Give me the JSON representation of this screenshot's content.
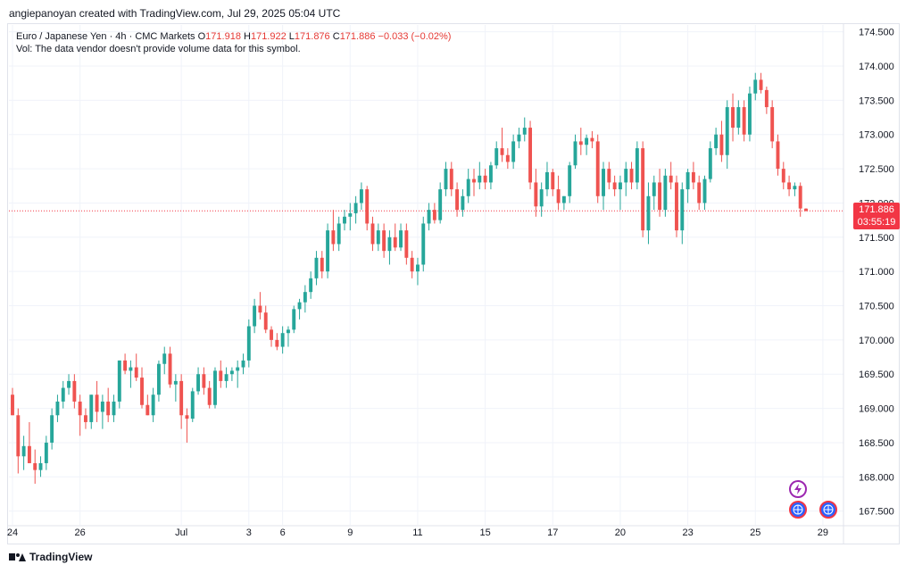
{
  "header": {
    "attribution": "angiepanoyan created with TradingView.com, Jul 29, 2025 05:04 UTC"
  },
  "legend": {
    "symbol": "Euro / Japanese Yen · 4h · CMC Markets",
    "open_label": "O",
    "open": "171.918",
    "high_label": "H",
    "high": "171.922",
    "low_label": "L",
    "low": "171.876",
    "close_label": "C",
    "close": "171.886",
    "change": "−0.033 (−0.02%)",
    "volume_note": "Vol: The data vendor doesn't provide volume data for this symbol."
  },
  "price_tag": {
    "price": "171.886",
    "countdown": "03:55:19"
  },
  "footer": {
    "brand": "TradingView"
  },
  "colors": {
    "up": "#26a69a",
    "down": "#ef5350",
    "price_line": "#f23645",
    "grid": "#f0f3fa"
  },
  "icons": [
    "lightning-icon",
    "globe-icon",
    "globe-icon"
  ],
  "chart_data": {
    "type": "candlestick",
    "title": "Euro / Japanese Yen · 4h · CMC Markets",
    "ylim": [
      167.3,
      174.6
    ],
    "y_ticks": [
      "174.500",
      "174.000",
      "173.500",
      "173.000",
      "172.500",
      "172.000",
      "171.500",
      "171.000",
      "170.500",
      "170.000",
      "169.500",
      "169.000",
      "168.500",
      "168.000",
      "167.500"
    ],
    "x_ticks": [
      {
        "label": "24",
        "index": 0
      },
      {
        "label": "26",
        "index": 12
      },
      {
        "label": "Jul",
        "index": 30
      },
      {
        "label": "3",
        "index": 42
      },
      {
        "label": "6",
        "index": 48
      },
      {
        "label": "9",
        "index": 60
      },
      {
        "label": "11",
        "index": 72
      },
      {
        "label": "15",
        "index": 84
      },
      {
        "label": "17",
        "index": 96
      },
      {
        "label": "20",
        "index": 108
      },
      {
        "label": "23",
        "index": 120
      },
      {
        "label": "25",
        "index": 132
      },
      {
        "label": "29",
        "index": 144
      }
    ],
    "last_price": 171.886,
    "candles": [
      [
        169.2,
        169.3,
        168.9,
        168.9
      ],
      [
        168.9,
        169.0,
        168.05,
        168.3
      ],
      [
        168.3,
        168.6,
        168.1,
        168.45
      ],
      [
        168.45,
        168.8,
        168.2,
        168.2
      ],
      [
        168.2,
        168.4,
        167.9,
        168.1
      ],
      [
        168.1,
        168.3,
        168.0,
        168.2
      ],
      [
        168.2,
        168.6,
        168.1,
        168.5
      ],
      [
        168.5,
        169.0,
        168.4,
        168.9
      ],
      [
        168.9,
        169.2,
        168.8,
        169.1
      ],
      [
        169.1,
        169.4,
        169.0,
        169.3
      ],
      [
        169.3,
        169.5,
        169.2,
        169.4
      ],
      [
        169.4,
        169.5,
        169.0,
        169.1
      ],
      [
        169.1,
        169.2,
        168.6,
        168.9
      ],
      [
        168.9,
        169.0,
        168.7,
        168.8
      ],
      [
        168.8,
        169.2,
        168.7,
        169.2
      ],
      [
        169.2,
        169.4,
        168.8,
        168.95
      ],
      [
        168.95,
        169.2,
        168.7,
        169.1
      ],
      [
        169.1,
        169.3,
        168.8,
        168.9
      ],
      [
        168.9,
        169.2,
        168.8,
        169.1
      ],
      [
        169.1,
        169.7,
        169.0,
        169.7
      ],
      [
        169.7,
        169.8,
        169.5,
        169.55
      ],
      [
        169.55,
        169.7,
        169.3,
        169.6
      ],
      [
        169.6,
        169.8,
        169.4,
        169.45
      ],
      [
        169.45,
        169.6,
        169.0,
        169.05
      ],
      [
        169.05,
        169.2,
        168.9,
        168.9
      ],
      [
        168.9,
        169.3,
        168.8,
        169.2
      ],
      [
        169.2,
        169.7,
        169.1,
        169.65
      ],
      [
        169.65,
        169.9,
        169.5,
        169.8
      ],
      [
        169.8,
        169.9,
        169.3,
        169.35
      ],
      [
        169.35,
        169.5,
        169.1,
        169.4
      ],
      [
        169.4,
        169.5,
        168.7,
        168.9
      ],
      [
        168.9,
        169.0,
        168.5,
        168.85
      ],
      [
        168.85,
        169.3,
        168.8,
        169.25
      ],
      [
        169.25,
        169.6,
        169.2,
        169.5
      ],
      [
        169.5,
        169.6,
        169.2,
        169.3
      ],
      [
        169.3,
        169.4,
        169.0,
        169.05
      ],
      [
        169.05,
        169.6,
        169.0,
        169.55
      ],
      [
        169.55,
        169.7,
        169.3,
        169.4
      ],
      [
        169.4,
        169.6,
        169.3,
        169.5
      ],
      [
        169.5,
        169.6,
        169.4,
        169.55
      ],
      [
        169.55,
        169.7,
        169.3,
        169.6
      ],
      [
        169.6,
        169.8,
        169.5,
        169.7
      ],
      [
        169.7,
        170.3,
        169.6,
        170.2
      ],
      [
        170.2,
        170.6,
        170.1,
        170.5
      ],
      [
        170.5,
        170.7,
        170.3,
        170.4
      ],
      [
        170.4,
        170.5,
        170.1,
        170.15
      ],
      [
        170.15,
        170.2,
        169.9,
        170.0
      ],
      [
        170.0,
        170.1,
        169.85,
        169.9
      ],
      [
        169.9,
        170.2,
        169.8,
        170.1
      ],
      [
        170.1,
        170.2,
        169.9,
        170.15
      ],
      [
        170.15,
        170.5,
        170.1,
        170.45
      ],
      [
        170.45,
        170.6,
        170.3,
        170.55
      ],
      [
        170.55,
        170.8,
        170.4,
        170.7
      ],
      [
        170.7,
        171.0,
        170.6,
        170.9
      ],
      [
        170.9,
        171.3,
        170.8,
        171.2
      ],
      [
        171.2,
        171.3,
        170.9,
        171.0
      ],
      [
        171.0,
        171.7,
        170.9,
        171.6
      ],
      [
        171.6,
        171.9,
        171.3,
        171.4
      ],
      [
        171.4,
        171.8,
        171.3,
        171.7
      ],
      [
        171.7,
        171.9,
        171.6,
        171.8
      ],
      [
        171.8,
        172.0,
        171.6,
        171.85
      ],
      [
        171.85,
        172.1,
        171.7,
        172.0
      ],
      [
        172.0,
        172.3,
        171.9,
        172.2
      ],
      [
        172.2,
        172.25,
        171.6,
        171.7
      ],
      [
        171.7,
        171.8,
        171.3,
        171.4
      ],
      [
        171.4,
        171.7,
        171.3,
        171.6
      ],
      [
        171.6,
        171.7,
        171.2,
        171.3
      ],
      [
        171.3,
        171.6,
        171.1,
        171.5
      ],
      [
        171.5,
        171.7,
        171.3,
        171.35
      ],
      [
        171.35,
        171.7,
        171.3,
        171.6
      ],
      [
        171.6,
        171.7,
        171.1,
        171.2
      ],
      [
        171.2,
        171.3,
        170.9,
        171.0
      ],
      [
        171.0,
        171.2,
        170.8,
        171.1
      ],
      [
        171.1,
        171.8,
        171.0,
        171.7
      ],
      [
        171.7,
        172.0,
        171.6,
        171.9
      ],
      [
        171.9,
        172.0,
        171.7,
        171.75
      ],
      [
        171.75,
        172.3,
        171.7,
        172.2
      ],
      [
        172.2,
        172.6,
        172.1,
        172.5
      ],
      [
        172.5,
        172.6,
        172.1,
        172.2
      ],
      [
        172.2,
        172.3,
        171.8,
        171.9
      ],
      [
        171.9,
        172.2,
        171.8,
        172.1
      ],
      [
        172.1,
        172.5,
        172.0,
        172.35
      ],
      [
        172.35,
        172.5,
        172.1,
        172.3
      ],
      [
        172.3,
        172.6,
        172.2,
        172.4
      ],
      [
        172.4,
        172.5,
        172.2,
        172.3
      ],
      [
        172.3,
        172.6,
        172.2,
        172.55
      ],
      [
        172.55,
        172.9,
        172.5,
        172.8
      ],
      [
        172.8,
        173.1,
        172.6,
        172.7
      ],
      [
        172.7,
        172.8,
        172.5,
        172.6
      ],
      [
        172.6,
        173.0,
        172.5,
        172.9
      ],
      [
        172.9,
        173.1,
        172.8,
        173.0
      ],
      [
        173.0,
        173.25,
        172.9,
        173.1
      ],
      [
        173.1,
        173.2,
        172.2,
        172.3
      ],
      [
        172.3,
        172.5,
        171.8,
        171.95
      ],
      [
        171.95,
        172.3,
        171.8,
        172.2
      ],
      [
        172.2,
        172.6,
        172.1,
        172.45
      ],
      [
        172.45,
        172.5,
        172.1,
        172.2
      ],
      [
        172.2,
        172.4,
        171.9,
        172.0
      ],
      [
        172.0,
        172.1,
        171.9,
        172.1
      ],
      [
        172.1,
        172.6,
        172.0,
        172.55
      ],
      [
        172.55,
        173.0,
        172.5,
        172.9
      ],
      [
        172.9,
        173.1,
        172.7,
        172.85
      ],
      [
        172.85,
        173.0,
        172.7,
        172.95
      ],
      [
        172.95,
        173.05,
        172.8,
        172.9
      ],
      [
        172.9,
        173.0,
        172.0,
        172.1
      ],
      [
        172.1,
        172.6,
        171.9,
        172.5
      ],
      [
        172.5,
        172.6,
        172.2,
        172.3
      ],
      [
        172.3,
        172.4,
        172.1,
        172.2
      ],
      [
        172.2,
        172.4,
        171.9,
        172.3
      ],
      [
        172.3,
        172.6,
        172.1,
        172.5
      ],
      [
        172.5,
        172.6,
        172.2,
        172.3
      ],
      [
        172.3,
        172.9,
        172.2,
        172.8
      ],
      [
        172.8,
        172.9,
        171.5,
        171.6
      ],
      [
        171.6,
        172.3,
        171.4,
        172.1
      ],
      [
        172.1,
        172.4,
        171.9,
        172.3
      ],
      [
        172.3,
        172.5,
        171.8,
        171.9
      ],
      [
        171.9,
        172.5,
        171.8,
        172.4
      ],
      [
        172.4,
        172.6,
        172.2,
        172.3
      ],
      [
        172.3,
        172.4,
        171.5,
        171.6
      ],
      [
        171.6,
        172.3,
        171.4,
        172.2
      ],
      [
        172.2,
        172.5,
        172.0,
        172.45
      ],
      [
        172.45,
        172.6,
        172.2,
        172.3
      ],
      [
        172.3,
        172.4,
        171.9,
        172.0
      ],
      [
        172.0,
        172.4,
        171.9,
        172.35
      ],
      [
        172.35,
        172.9,
        172.3,
        172.8
      ],
      [
        172.8,
        173.1,
        172.7,
        173.0
      ],
      [
        173.0,
        173.2,
        172.6,
        172.7
      ],
      [
        172.7,
        173.5,
        172.5,
        173.4
      ],
      [
        173.4,
        173.6,
        172.9,
        173.1
      ],
      [
        173.1,
        173.5,
        173.0,
        173.4
      ],
      [
        173.4,
        173.5,
        172.9,
        173.0
      ],
      [
        173.0,
        173.7,
        172.9,
        173.6
      ],
      [
        173.6,
        173.9,
        173.5,
        173.8
      ],
      [
        173.8,
        173.9,
        173.6,
        173.65
      ],
      [
        173.65,
        173.7,
        173.3,
        173.4
      ],
      [
        173.4,
        173.5,
        172.8,
        172.9
      ],
      [
        172.9,
        173.0,
        172.4,
        172.5
      ],
      [
        172.5,
        172.6,
        172.2,
        172.3
      ],
      [
        172.3,
        172.4,
        172.1,
        172.2
      ],
      [
        172.2,
        172.3,
        172.1,
        172.25
      ],
      [
        172.25,
        172.3,
        171.8,
        171.92
      ],
      [
        171.918,
        171.922,
        171.876,
        171.886
      ]
    ]
  }
}
